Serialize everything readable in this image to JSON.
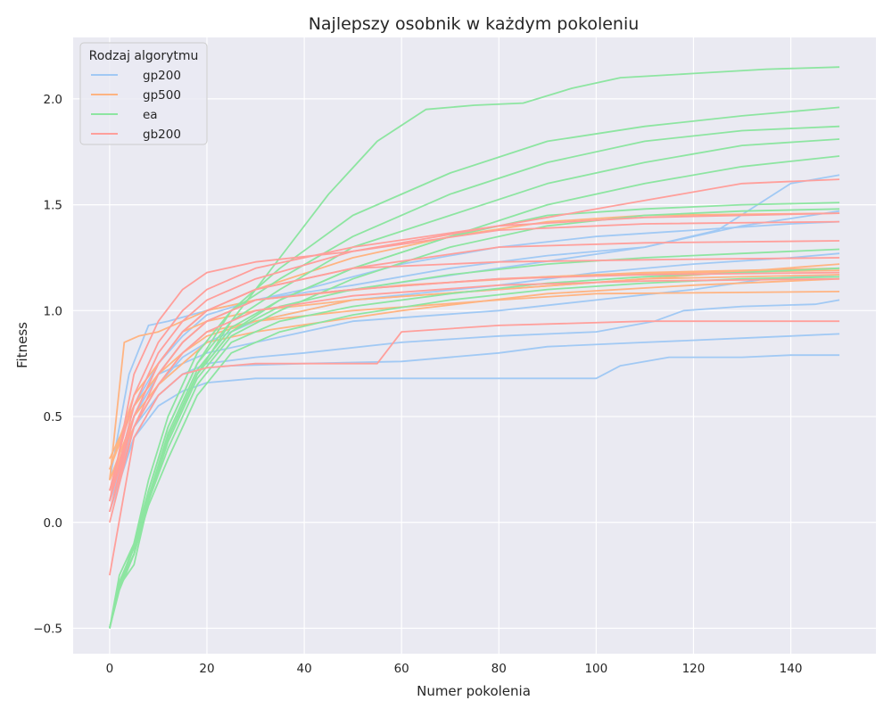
{
  "chart_data": {
    "type": "line",
    "title": "Najlepszy osobnik w każdym pokoleniu",
    "xlabel": "Numer pokolenia",
    "ylabel": "Fitness",
    "xlim": [
      -7.5,
      157.5
    ],
    "ylim": [
      -0.62,
      2.29
    ],
    "x_ticks": [
      0,
      20,
      40,
      60,
      80,
      100,
      120,
      140
    ],
    "y_ticks": [
      -0.5,
      0.0,
      0.5,
      1.0,
      1.5,
      2.0
    ],
    "x_tick_labels": [
      "0",
      "20",
      "40",
      "60",
      "80",
      "100",
      "120",
      "140"
    ],
    "y_tick_labels": [
      "−0.5",
      "0.0",
      "0.5",
      "1.0",
      "1.5",
      "2.0"
    ],
    "grid": true,
    "legend": {
      "title": "Rodzaj algorytmu",
      "placement": "top-left",
      "entries": [
        {
          "name": "gp200",
          "color": "#a1c9f4"
        },
        {
          "name": "gp500",
          "color": "#ffb482"
        },
        {
          "name": "ea",
          "color": "#8de5a1"
        },
        {
          "name": "gb200",
          "color": "#ff9f9b"
        }
      ]
    },
    "colors": {
      "background": "#eaeaf2",
      "grid": "#ffffff",
      "gp200": "#a1c9f4",
      "gp500": "#ffb482",
      "ea": "#8de5a1",
      "gb200": "#ff9f9b"
    },
    "groups": [
      {
        "name": "gp200",
        "runs": [
          {
            "x": [
              0,
              5,
              10,
              15,
              20,
              30,
              40,
              60,
              80,
              100,
              120,
              140,
              150
            ],
            "y": [
              0.1,
              0.55,
              0.75,
              0.88,
              0.98,
              1.05,
              1.1,
              1.22,
              1.3,
              1.35,
              1.38,
              1.41,
              1.42
            ]
          },
          {
            "x": [
              0,
              5,
              10,
              15,
              20,
              30,
              50,
              70,
              90,
              110,
              125,
              140,
              150
            ],
            "y": [
              0.1,
              0.5,
              0.7,
              0.85,
              0.95,
              1.05,
              1.12,
              1.2,
              1.26,
              1.3,
              1.38,
              1.6,
              1.64
            ]
          },
          {
            "x": [
              0,
              5,
              10,
              15,
              20,
              30,
              50,
              80,
              100,
              120,
              140,
              150
            ],
            "y": [
              0.15,
              0.45,
              0.65,
              0.78,
              0.85,
              0.95,
              1.05,
              1.12,
              1.18,
              1.22,
              1.25,
              1.27
            ]
          },
          {
            "x": [
              0,
              5,
              10,
              15,
              20,
              30,
              50,
              80,
              100,
              120,
              135,
              150
            ],
            "y": [
              0.1,
              0.5,
              0.7,
              0.75,
              0.8,
              0.85,
              0.95,
              1.0,
              1.05,
              1.1,
              1.15,
              1.17
            ]
          },
          {
            "x": [
              0,
              5,
              10,
              15,
              20,
              30,
              40,
              60,
              80,
              100,
              112,
              118,
              130,
              145,
              150
            ],
            "y": [
              0.1,
              0.45,
              0.6,
              0.7,
              0.75,
              0.78,
              0.8,
              0.85,
              0.88,
              0.9,
              0.95,
              1.0,
              1.02,
              1.03,
              1.05
            ]
          },
          {
            "x": [
              0,
              5,
              10,
              15,
              20,
              25,
              40,
              60,
              80,
              90,
              110,
              130,
              140,
              150
            ],
            "y": [
              0.1,
              0.4,
              0.6,
              0.7,
              0.73,
              0.74,
              0.75,
              0.76,
              0.8,
              0.83,
              0.85,
              0.87,
              0.88,
              0.89
            ]
          },
          {
            "x": [
              0,
              5,
              10,
              15,
              20,
              25,
              30,
              50,
              80,
              100,
              105,
              115,
              130,
              140,
              150
            ],
            "y": [
              0.05,
              0.4,
              0.55,
              0.62,
              0.66,
              0.67,
              0.68,
              0.68,
              0.68,
              0.68,
              0.74,
              0.78,
              0.78,
              0.79,
              0.79
            ]
          },
          {
            "x": [
              0,
              4,
              8,
              12,
              20,
              30,
              50,
              80,
              110,
              130,
              150
            ],
            "y": [
              0.2,
              0.7,
              0.93,
              0.95,
              1.0,
              1.05,
              1.1,
              1.2,
              1.3,
              1.4,
              1.47
            ]
          }
        ]
      },
      {
        "name": "gp500",
        "runs": [
          {
            "x": [
              0,
              3,
              6,
              10,
              15,
              20,
              30,
              50,
              80,
              110,
              150
            ],
            "y": [
              0.2,
              0.85,
              0.88,
              0.9,
              0.95,
              1.0,
              1.05,
              1.1,
              1.15,
              1.18,
              1.2
            ]
          },
          {
            "x": [
              0,
              5,
              10,
              15,
              20,
              30,
              50,
              80,
              110,
              150
            ],
            "y": [
              0.25,
              0.6,
              0.75,
              0.9,
              0.95,
              1.0,
              1.05,
              1.1,
              1.15,
              1.22
            ]
          },
          {
            "x": [
              0,
              5,
              10,
              15,
              20,
              30,
              50,
              80,
              110,
              150
            ],
            "y": [
              0.2,
              0.5,
              0.65,
              0.8,
              0.9,
              0.95,
              1.05,
              1.1,
              1.15,
              1.17
            ]
          },
          {
            "x": [
              0,
              5,
              10,
              15,
              20,
              30,
              50,
              80,
              100,
              150
            ],
            "y": [
              0.3,
              0.55,
              0.7,
              0.8,
              0.88,
              0.95,
              1.0,
              1.05,
              1.08,
              1.09
            ]
          },
          {
            "x": [
              0,
              5,
              10,
              15,
              20,
              30,
              50,
              70,
              90,
              110,
              150
            ],
            "y": [
              0.15,
              0.5,
              0.75,
              0.9,
              1.0,
              1.1,
              1.25,
              1.35,
              1.42,
              1.45,
              1.46
            ]
          },
          {
            "x": [
              0,
              5,
              10,
              15,
              20,
              30,
              60,
              90,
              120,
              150
            ],
            "y": [
              0.2,
              0.45,
              0.65,
              0.75,
              0.85,
              0.9,
              1.0,
              1.08,
              1.12,
              1.15
            ]
          },
          {
            "x": [
              0,
              5,
              10,
              15,
              20,
              30,
              60,
              90,
              120,
              150
            ],
            "y": [
              0.25,
              0.55,
              0.7,
              0.85,
              0.95,
              1.05,
              1.12,
              1.16,
              1.18,
              1.19
            ]
          }
        ]
      },
      {
        "name": "ea",
        "runs": [
          {
            "x": [
              0,
              2,
              5,
              8,
              12,
              18,
              25,
              35,
              45,
              55,
              65,
              75,
              85,
              95,
              105,
              120,
              135,
              150
            ],
            "y": [
              -0.5,
              -0.3,
              -0.2,
              0.1,
              0.4,
              0.7,
              0.95,
              1.25,
              1.55,
              1.8,
              1.95,
              1.97,
              1.98,
              2.05,
              2.1,
              2.12,
              2.14,
              2.15
            ]
          },
          {
            "x": [
              0,
              2,
              5,
              8,
              12,
              18,
              25,
              35,
              50,
              70,
              90,
              110,
              130,
              150
            ],
            "y": [
              -0.5,
              -0.3,
              -0.15,
              0.15,
              0.45,
              0.75,
              1.0,
              1.2,
              1.45,
              1.65,
              1.8,
              1.87,
              1.92,
              1.96
            ]
          },
          {
            "x": [
              0,
              2,
              5,
              8,
              12,
              18,
              25,
              35,
              50,
              70,
              90,
              110,
              130,
              150
            ],
            "y": [
              -0.5,
              -0.3,
              -0.1,
              0.2,
              0.5,
              0.8,
              1.0,
              1.15,
              1.35,
              1.55,
              1.7,
              1.8,
              1.85,
              1.87
            ]
          },
          {
            "x": [
              0,
              2,
              5,
              8,
              12,
              18,
              25,
              35,
              50,
              70,
              90,
              110,
              130,
              150
            ],
            "y": [
              -0.5,
              -0.25,
              -0.1,
              0.15,
              0.45,
              0.75,
              0.95,
              1.1,
              1.3,
              1.45,
              1.6,
              1.7,
              1.78,
              1.81
            ]
          },
          {
            "x": [
              0,
              2,
              5,
              8,
              12,
              18,
              25,
              35,
              50,
              70,
              90,
              110,
              130,
              150
            ],
            "y": [
              -0.5,
              -0.3,
              -0.15,
              0.1,
              0.4,
              0.7,
              0.9,
              1.05,
              1.2,
              1.35,
              1.5,
              1.6,
              1.68,
              1.73
            ]
          },
          {
            "x": [
              0,
              2,
              5,
              8,
              12,
              18,
              25,
              35,
              50,
              70,
              90,
              110,
              130,
              150
            ],
            "y": [
              -0.5,
              -0.28,
              -0.12,
              0.12,
              0.42,
              0.72,
              0.92,
              1.05,
              1.2,
              1.35,
              1.45,
              1.48,
              1.5,
              1.51
            ]
          },
          {
            "x": [
              0,
              2,
              5,
              8,
              12,
              18,
              25,
              35,
              50,
              70,
              90,
              110,
              130,
              150
            ],
            "y": [
              -0.5,
              -0.3,
              -0.15,
              0.1,
              0.38,
              0.68,
              0.88,
              1.0,
              1.15,
              1.3,
              1.4,
              1.45,
              1.47,
              1.48
            ]
          },
          {
            "x": [
              0,
              2,
              5,
              8,
              12,
              18,
              25,
              35,
              50,
              70,
              90,
              110,
              130,
              150
            ],
            "y": [
              -0.5,
              -0.3,
              -0.12,
              0.12,
              0.4,
              0.7,
              0.9,
              1.02,
              1.1,
              1.17,
              1.22,
              1.25,
              1.27,
              1.29
            ]
          },
          {
            "x": [
              0,
              2,
              5,
              8,
              12,
              18,
              25,
              35,
              50,
              70,
              90,
              110,
              130,
              150
            ],
            "y": [
              -0.5,
              -0.3,
              -0.15,
              0.1,
              0.35,
              0.65,
              0.85,
              0.95,
              1.02,
              1.08,
              1.13,
              1.16,
              1.18,
              1.2
            ]
          },
          {
            "x": [
              0,
              2,
              5,
              8,
              12,
              18,
              25,
              35,
              50,
              70,
              90,
              110,
              130,
              150
            ],
            "y": [
              -0.5,
              -0.32,
              -0.15,
              0.08,
              0.3,
              0.6,
              0.8,
              0.9,
              0.98,
              1.05,
              1.1,
              1.13,
              1.15,
              1.16
            ]
          }
        ]
      },
      {
        "name": "gb200",
        "runs": [
          {
            "x": [
              0,
              5,
              10,
              15,
              20,
              30,
              50,
              80,
              110,
              130,
              150
            ],
            "y": [
              0.1,
              0.7,
              0.95,
              1.1,
              1.18,
              1.23,
              1.28,
              1.4,
              1.52,
              1.6,
              1.62
            ]
          },
          {
            "x": [
              0,
              5,
              10,
              15,
              20,
              30,
              50,
              80,
              110,
              150
            ],
            "y": [
              0.15,
              0.6,
              0.85,
              1.0,
              1.1,
              1.2,
              1.3,
              1.4,
              1.44,
              1.46
            ]
          },
          {
            "x": [
              0,
              5,
              10,
              15,
              20,
              30,
              50,
              80,
              110,
              150
            ],
            "y": [
              0.1,
              0.55,
              0.8,
              0.95,
              1.05,
              1.15,
              1.28,
              1.38,
              1.41,
              1.42
            ]
          },
          {
            "x": [
              0,
              5,
              10,
              15,
              20,
              30,
              50,
              80,
              110,
              150
            ],
            "y": [
              0.05,
              0.5,
              0.75,
              0.9,
              1.0,
              1.1,
              1.2,
              1.3,
              1.32,
              1.33
            ]
          },
          {
            "x": [
              0,
              5,
              10,
              15,
              20,
              30,
              50,
              80,
              110,
              150
            ],
            "y": [
              0.1,
              0.5,
              0.75,
              0.9,
              1.0,
              1.1,
              1.2,
              1.23,
              1.24,
              1.25
            ]
          },
          {
            "x": [
              0,
              5,
              10,
              15,
              20,
              30,
              50,
              80,
              110,
              150
            ],
            "y": [
              0.0,
              0.45,
              0.7,
              0.85,
              0.95,
              1.05,
              1.1,
              1.15,
              1.17,
              1.18
            ]
          },
          {
            "x": [
              0,
              5,
              10,
              15,
              20,
              30,
              50,
              80,
              110,
              150
            ],
            "y": [
              0.05,
              0.45,
              0.65,
              0.8,
              0.9,
              1.0,
              1.07,
              1.12,
              1.14,
              1.15
            ]
          },
          {
            "x": [
              0,
              5,
              10,
              15,
              20,
              30,
              40,
              55,
              60,
              80,
              110,
              150
            ],
            "y": [
              -0.25,
              0.4,
              0.6,
              0.7,
              0.73,
              0.75,
              0.75,
              0.75,
              0.9,
              0.93,
              0.95,
              0.95
            ]
          }
        ]
      }
    ]
  }
}
